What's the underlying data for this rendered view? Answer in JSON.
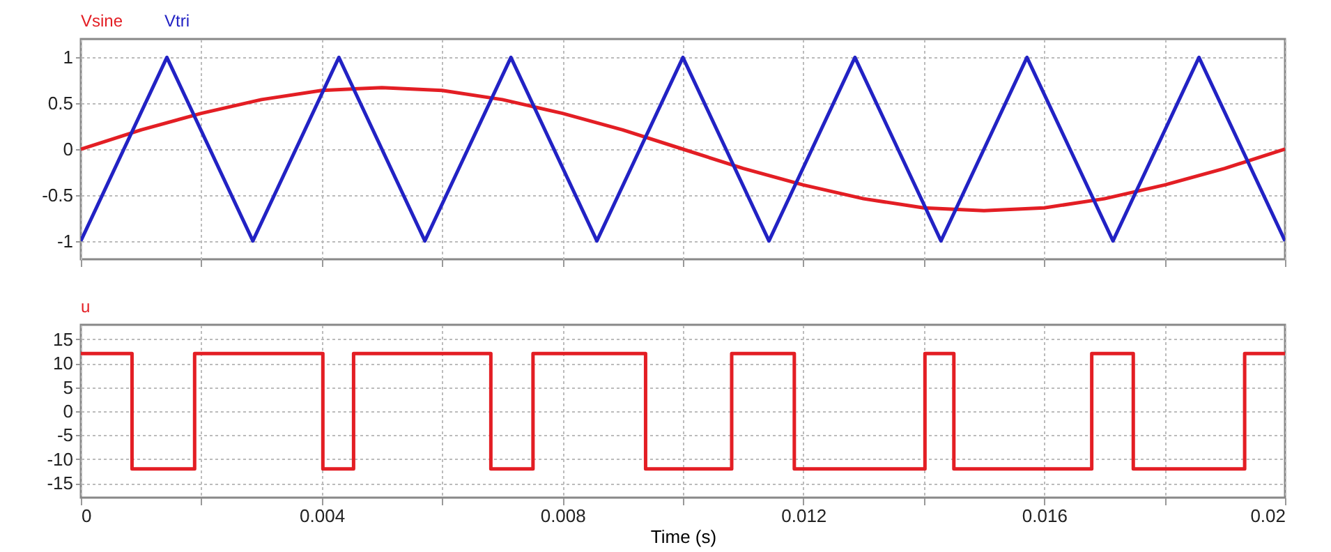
{
  "chart_data": [
    {
      "type": "line",
      "xlim": [
        0,
        0.02
      ],
      "ylim": [
        -1.2,
        1.2
      ],
      "xticks": [
        0,
        {
          "value": 0.002,
          "label": null
        },
        0.004,
        {
          "value": 0.006,
          "label": null
        },
        0.008,
        {
          "value": 0.01,
          "label": null
        },
        0.012,
        {
          "value": 0.014,
          "label": null
        },
        0.016,
        {
          "value": 0.018,
          "label": null
        },
        0.02
      ],
      "yticks": [
        -1,
        -0.5,
        0,
        0.5,
        1
      ],
      "grid": true,
      "tick_labels": "y",
      "line_style": "solid",
      "series": [
        {
          "name": "Vsine",
          "color": "#e31e24",
          "x": [
            0,
            0.001,
            0.002,
            0.003,
            0.004,
            0.005,
            0.006,
            0.007,
            0.008,
            0.009,
            0.01,
            0.011,
            0.012,
            0.013,
            0.014,
            0.015,
            0.016,
            0.017,
            0.018,
            0.019,
            0.02
          ],
          "values": [
            0,
            0.21,
            0.39,
            0.54,
            0.64,
            0.67,
            0.64,
            0.54,
            0.39,
            0.21,
            0,
            -0.21,
            -0.39,
            -0.54,
            -0.64,
            -0.67,
            -0.64,
            -0.54,
            -0.39,
            -0.21,
            0
          ]
        },
        {
          "name": "Vtri",
          "color": "#2222c4",
          "x": [
            0,
            0.001429,
            0.002857,
            0.004286,
            0.005714,
            0.007143,
            0.008571,
            0.01,
            0.011429,
            0.012857,
            0.014286,
            0.015714,
            0.017143,
            0.018571,
            0.02
          ],
          "values": [
            -1,
            1,
            -1,
            1,
            -1,
            1,
            -1,
            1,
            -1,
            1,
            -1,
            1,
            -1,
            1,
            -1
          ]
        }
      ]
    },
    {
      "type": "step",
      "xlabel": "Time (s)",
      "xlim": [
        0,
        0.02
      ],
      "ylim": [
        -18,
        18
      ],
      "xticks": [
        0,
        {
          "value": 0.002,
          "label": null
        },
        0.004,
        {
          "value": 0.006,
          "label": null
        },
        0.008,
        {
          "value": 0.01,
          "label": null
        },
        0.012,
        {
          "value": 0.014,
          "label": null
        },
        0.016,
        {
          "value": 0.018,
          "label": null
        },
        0.02
      ],
      "yticks": [
        -15,
        -10,
        -5,
        0,
        5,
        10,
        15
      ],
      "grid": true,
      "line_style": "solid",
      "series": [
        {
          "name": "u",
          "color": "#e31e24",
          "x": [
            0,
            0.00085,
            0.00189,
            0.00402,
            0.00453,
            0.00681,
            0.00751,
            0.00938,
            0.01081,
            0.01185,
            0.01402,
            0.0145,
            0.01679,
            0.01748,
            0.01933,
            0.02
          ],
          "values": [
            12,
            -12,
            12,
            -12,
            12,
            -12,
            12,
            -12,
            12,
            -12,
            12,
            -12,
            12,
            -12,
            12,
            12
          ]
        }
      ]
    }
  ]
}
